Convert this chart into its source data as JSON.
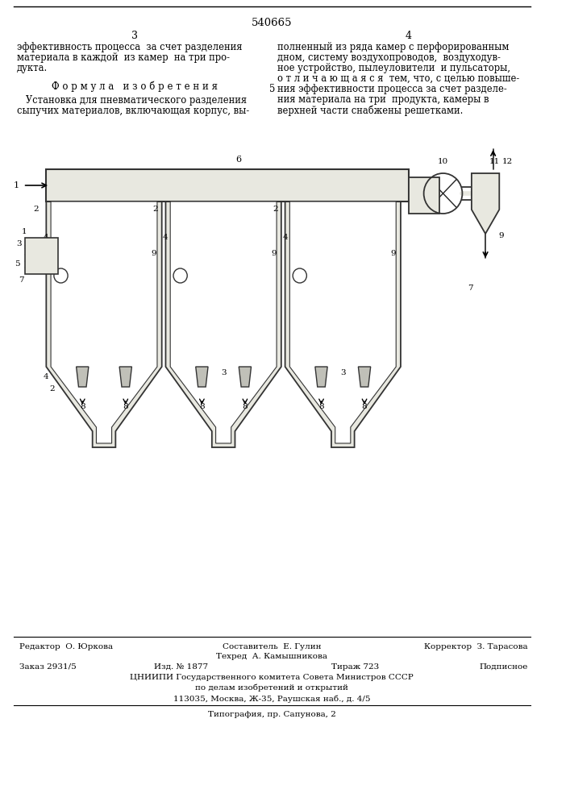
{
  "bg_color": "#f5f5f0",
  "page_color": "#ffffff",
  "title_number": "540665",
  "page_left": "3",
  "page_right": "4",
  "line1_top": "эффективность процесса  за счет разделения",
  "line2_top": "материала в каждой  из камер  на три про-",
  "line3_top": "дукта.",
  "formula_title": "Ф о р м у л а   и з о б р е т е н и я",
  "formula_text1": "   Установка для пневматического разделения",
  "formula_text2": "сыпучих материалов, включающая корпус, вы-",
  "right_col_1": "полненный из ряда камер с перфорированным",
  "right_col_2": "дном, систему воздухопроводов,  воздуходув-",
  "right_col_3": "ное устройство, пылеуловители  и пульсаторы,",
  "right_col_4": "о т л и ч а ю щ а я с я  тем, что, с целью повыше-",
  "right_col_5_num": "5",
  "right_col_5": "ния эффективности процесса за счет разделе-",
  "right_col_6": "ния материала на три  продукта, камеры в",
  "right_col_7": "верхней части снабжены решетками.",
  "footer_editor": "Редактор  О. Юркова",
  "footer_composer": "Составитель  Е. Гулин",
  "footer_corrector": "Корректор  З. Тарасова",
  "footer_tech": "Техред  А. Камышникова",
  "footer_order": "Заказ 2931/5",
  "footer_izd": "Изд. № 1877",
  "footer_tirazh": "Тираж 723",
  "footer_podpisnoe": "Подписное",
  "footer_cniippi": "ЦНИИПИ Государственного комитета Совета Министров СССР",
  "footer_po_delam": "по делам изобретений и открытий",
  "footer_address": "113035, Москва, Ж-35, Раушская наб., д. 4/5",
  "footer_tipografia": "Типография, пр. Сапунова, 2"
}
